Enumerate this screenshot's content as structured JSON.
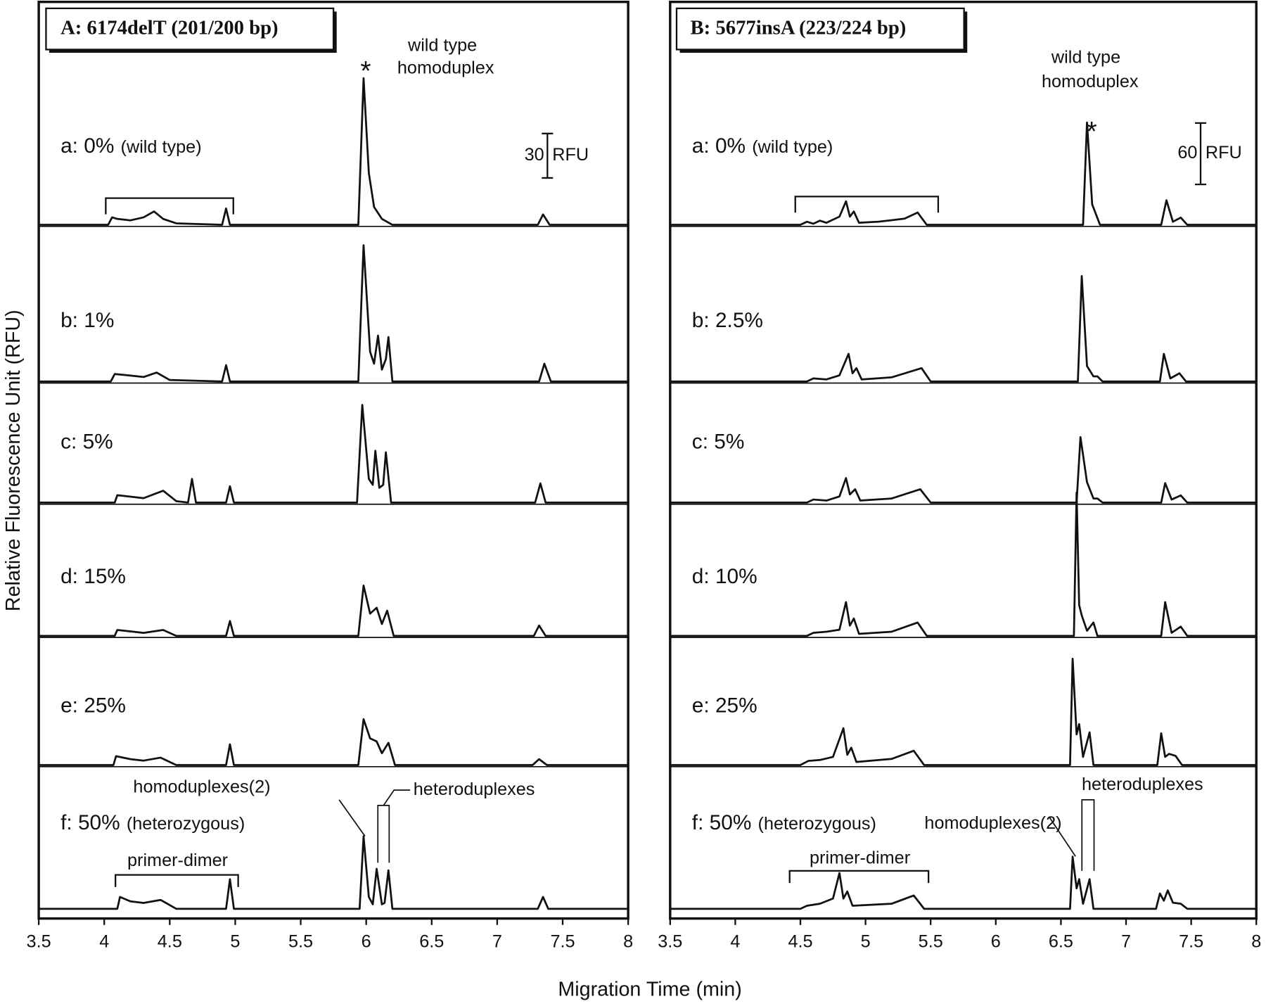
{
  "figure": {
    "xlabel": "Migration Time (min)",
    "ylabel": "Relative Fluorescence Unit (RFU)"
  },
  "chart_data": [
    {
      "type": "line",
      "title": "A: 6174delT (201/200 bp)",
      "xlim": [
        3.5,
        8
      ],
      "xticks": [
        3.5,
        4,
        4.5,
        5,
        5.5,
        6,
        6.5,
        7,
        7.5,
        8
      ],
      "scale_bar": {
        "value": 30,
        "unit": "RFU"
      },
      "annotations": {
        "peak_marker": "*",
        "wild_type": [
          "wild type",
          "homoduplex"
        ],
        "homoduplexes": "homoduplexes(2)",
        "heteroduplexes": "heteroduplexes",
        "primer_dimer": "primer-dimer"
      },
      "series": [
        {
          "label": "a: 0%",
          "detail": "(wild type)",
          "color": "#111",
          "x": [
            3.5,
            4.03,
            4.06,
            4.1,
            4.2,
            4.3,
            4.38,
            4.45,
            4.55,
            4.9,
            4.93,
            4.96,
            5.94,
            5.98,
            6.02,
            6.06,
            6.12,
            6.2,
            7.31,
            7.35,
            7.4,
            8
          ],
          "values": [
            0,
            0,
            5,
            4,
            3,
            5,
            9,
            4,
            1,
            0,
            11,
            0,
            0,
            99,
            35,
            12,
            4,
            0,
            0,
            7,
            0,
            0
          ]
        },
        {
          "label": "b: 1%",
          "color": "#111",
          "x": [
            3.5,
            4.05,
            4.08,
            4.2,
            4.3,
            4.4,
            4.5,
            4.9,
            4.93,
            4.96,
            5.94,
            5.98,
            6.03,
            6.06,
            6.09,
            6.12,
            6.15,
            6.17,
            6.2,
            7.32,
            7.36,
            7.41,
            8
          ],
          "values": [
            0,
            0,
            5,
            4,
            3,
            6,
            1,
            0,
            11,
            0,
            0,
            92,
            20,
            12,
            31,
            8,
            15,
            30,
            0,
            0,
            12,
            0,
            0
          ]
        },
        {
          "label": "c: 5%",
          "color": "#111",
          "x": [
            3.5,
            4.08,
            4.1,
            4.2,
            4.3,
            4.45,
            4.55,
            4.64,
            4.67,
            4.7,
            4.93,
            4.96,
            4.99,
            5.93,
            5.97,
            6.02,
            6.05,
            6.07,
            6.1,
            6.13,
            6.15,
            6.19,
            7.29,
            7.33,
            7.37,
            8
          ],
          "values": [
            0,
            0,
            5,
            4,
            3,
            8,
            1,
            0,
            16,
            0,
            0,
            11,
            0,
            0,
            66,
            16,
            12,
            35,
            10,
            12,
            34,
            0,
            0,
            13,
            0,
            0
          ]
        },
        {
          "label": "d: 15%",
          "color": "#111",
          "x": [
            3.5,
            4.08,
            4.1,
            4.2,
            4.3,
            4.45,
            4.55,
            4.93,
            4.96,
            4.99,
            5.94,
            5.98,
            6.03,
            6.08,
            6.12,
            6.16,
            6.21,
            7.28,
            7.32,
            7.37,
            8
          ],
          "values": [
            0,
            0,
            4,
            3,
            2,
            4,
            0,
            0,
            10,
            0,
            0,
            34,
            15,
            19,
            8,
            17,
            0,
            0,
            7,
            0,
            0
          ]
        },
        {
          "label": "e: 25%",
          "color": "#111",
          "x": [
            3.5,
            4.07,
            4.09,
            4.2,
            4.3,
            4.43,
            4.55,
            4.93,
            4.96,
            4.99,
            5.94,
            5.98,
            6.03,
            6.08,
            6.12,
            6.17,
            6.22,
            7.27,
            7.32,
            7.38,
            8
          ],
          "values": [
            0,
            0,
            6,
            4,
            3,
            5,
            0,
            0,
            14,
            0,
            0,
            31,
            18,
            16,
            8,
            15,
            0,
            0,
            4,
            0,
            0
          ]
        },
        {
          "label": "f: 50%",
          "detail": "(heterozygous)",
          "color": "#111",
          "x": [
            3.5,
            4.1,
            4.12,
            4.2,
            4.3,
            4.43,
            4.55,
            4.93,
            4.96,
            4.99,
            5.95,
            5.98,
            6.02,
            6.05,
            6.08,
            6.12,
            6.14,
            6.17,
            6.2,
            7.31,
            7.35,
            7.39,
            8
          ],
          "values": [
            0,
            0,
            8,
            5,
            4,
            6,
            0,
            0,
            20,
            0,
            0,
            49,
            8,
            3,
            27,
            3,
            4,
            26,
            0,
            0,
            8,
            0,
            0
          ]
        }
      ]
    },
    {
      "type": "line",
      "title": "B: 5677insA (223/224 bp)",
      "xlim": [
        3.5,
        8
      ],
      "xticks": [
        3.5,
        4,
        4.5,
        5,
        5.5,
        6,
        6.5,
        7,
        7.5,
        8
      ],
      "scale_bar": {
        "value": 60,
        "unit": "RFU"
      },
      "annotations": {
        "peak_marker": "*",
        "wild_type": [
          "wild type",
          "homoduplex"
        ],
        "homoduplexes": "homoduplexes(2)",
        "heteroduplexes": "heteroduplexes",
        "primer_dimer": "primer-dimer"
      },
      "series": [
        {
          "label": "a: 0%",
          "detail": "(wild type)",
          "color": "#111",
          "x": [
            3.5,
            4.5,
            4.55,
            4.6,
            4.65,
            4.7,
            4.8,
            4.85,
            4.88,
            4.91,
            4.95,
            5.1,
            5.3,
            5.4,
            5.47,
            6.67,
            6.7,
            6.74,
            6.8,
            7.27,
            7.31,
            7.36,
            7.42,
            7.47,
            8
          ],
          "values": [
            0,
            0,
            3,
            1,
            4,
            2,
            8,
            23,
            8,
            13,
            2,
            3,
            6,
            12,
            0,
            0,
            100,
            20,
            0,
            0,
            24,
            3,
            7,
            0,
            0
          ]
        },
        {
          "label": "b: 2.5%",
          "color": "#111",
          "x": [
            3.5,
            4.55,
            4.6,
            4.7,
            4.8,
            4.87,
            4.9,
            4.93,
            4.97,
            5.2,
            5.43,
            5.5,
            6.63,
            6.66,
            6.7,
            6.75,
            6.78,
            6.82,
            7.26,
            7.29,
            7.34,
            7.41,
            7.46,
            8
          ],
          "values": [
            0,
            0,
            3,
            2,
            6,
            27,
            8,
            13,
            2,
            4,
            13,
            0,
            0,
            103,
            15,
            5,
            5,
            0,
            0,
            27,
            3,
            8,
            0,
            0
          ]
        },
        {
          "label": "c: 5%",
          "color": "#111",
          "x": [
            3.5,
            4.55,
            4.6,
            4.7,
            4.8,
            4.85,
            4.88,
            4.92,
            4.96,
            5.2,
            5.42,
            5.5,
            6.62,
            6.65,
            6.7,
            6.75,
            6.78,
            6.82,
            7.27,
            7.3,
            7.35,
            7.42,
            7.47,
            8
          ],
          "values": [
            0,
            0,
            3,
            2,
            6,
            24,
            8,
            13,
            2,
            4,
            13,
            0,
            0,
            64,
            20,
            4,
            4,
            0,
            0,
            19,
            3,
            7,
            0,
            0
          ]
        },
        {
          "label": "d: 10%",
          "color": "#111",
          "x": [
            3.5,
            4.55,
            4.6,
            4.7,
            4.8,
            4.85,
            4.88,
            4.91,
            4.95,
            5.2,
            5.4,
            5.47,
            6.6,
            6.62,
            6.64,
            6.66,
            6.7,
            6.75,
            6.78,
            7.27,
            7.3,
            7.35,
            7.42,
            7.47,
            8
          ],
          "values": [
            0,
            0,
            3,
            4,
            6,
            33,
            10,
            17,
            2,
            4,
            13,
            0,
            0,
            140,
            30,
            20,
            5,
            13,
            0,
            0,
            33,
            3,
            9,
            0,
            0
          ]
        },
        {
          "label": "e: 25%",
          "color": "#111",
          "x": [
            3.5,
            4.5,
            4.56,
            4.65,
            4.75,
            4.83,
            4.86,
            4.89,
            4.93,
            5.2,
            5.37,
            5.45,
            6.57,
            6.59,
            6.62,
            6.64,
            6.67,
            6.72,
            6.75,
            7.24,
            7.27,
            7.3,
            7.33,
            7.38,
            7.43,
            8
          ],
          "values": [
            0,
            0,
            4,
            5,
            8,
            36,
            10,
            17,
            3,
            6,
            14,
            0,
            0,
            104,
            30,
            40,
            8,
            32,
            0,
            0,
            31,
            8,
            11,
            9,
            0,
            0
          ]
        },
        {
          "label": "f: 50%",
          "detail": "(heterozygous)",
          "color": "#111",
          "x": [
            3.5,
            4.5,
            4.55,
            4.65,
            4.75,
            4.8,
            4.83,
            4.86,
            4.9,
            5.2,
            5.37,
            5.45,
            6.57,
            6.59,
            6.62,
            6.64,
            6.67,
            6.72,
            6.75,
            7.23,
            7.26,
            7.29,
            7.32,
            7.36,
            7.42,
            7.47,
            8
          ],
          "values": [
            0,
            0,
            3,
            5,
            10,
            35,
            10,
            17,
            3,
            5,
            13,
            0,
            0,
            51,
            20,
            29,
            5,
            29,
            0,
            0,
            15,
            8,
            18,
            6,
            5,
            0,
            0
          ]
        }
      ]
    }
  ]
}
